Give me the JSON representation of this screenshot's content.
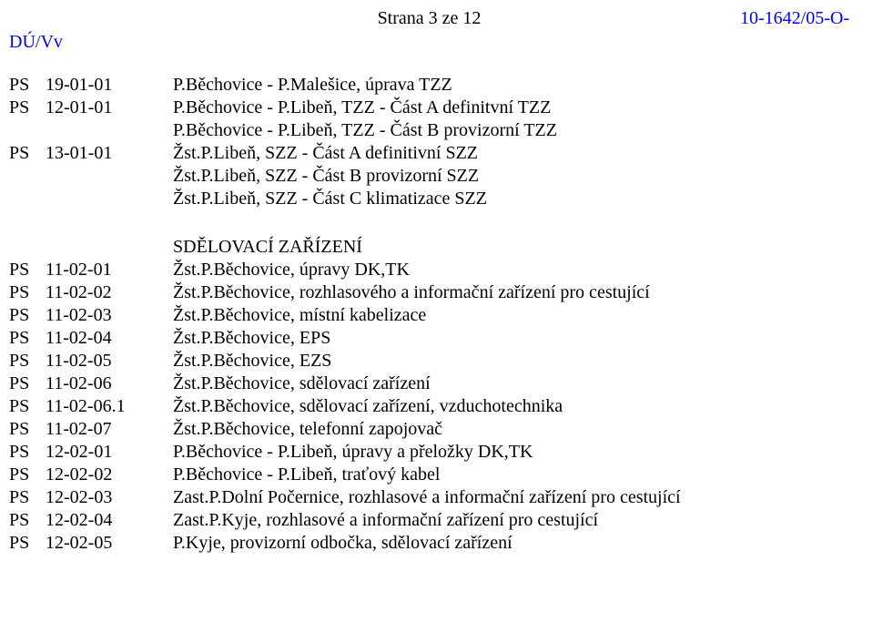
{
  "header": {
    "page_label": "Strana 3 ze 12",
    "ref_number": "10-1642/05-O-",
    "ref_left": "DÚ/Vv"
  },
  "colors": {
    "ref_color": "#0000ff",
    "text_color": "#000000",
    "background": "#ffffff"
  },
  "rows_top": [
    {
      "ps": "PS",
      "code": "19-01-01",
      "desc": "P.Běchovice - P.Malešice, úprava TZZ"
    },
    {
      "ps": "PS",
      "code": "12-01-01",
      "desc": "P.Běchovice - P.Libeň, TZZ - Část A definitvní TZZ"
    },
    {
      "ps": "",
      "code": "",
      "desc": "P.Běchovice - P.Libeň, TZZ - Část B provizorní TZZ"
    },
    {
      "ps": "PS",
      "code": "13-01-01",
      "desc": "Žst.P.Libeň, SZZ - Část A definitivní SZZ"
    },
    {
      "ps": "",
      "code": "",
      "desc": "Žst.P.Libeň, SZZ - Část B provizorní SZZ"
    },
    {
      "ps": "",
      "code": "",
      "desc": "Žst.P.Libeň, SZZ - Část C klimatizace SZZ"
    }
  ],
  "section_title": "SDĚLOVACÍ ZAŘÍZENÍ",
  "rows_bottom": [
    {
      "ps": "PS",
      "code": "11-02-01",
      "desc": "Žst.P.Běchovice, úpravy DK,TK"
    },
    {
      "ps": "PS",
      "code": "11-02-02",
      "desc": "Žst.P.Běchovice, rozhlasového a informační zařízení pro cestující"
    },
    {
      "ps": "PS",
      "code": "11-02-03",
      "desc": "Žst.P.Běchovice, místní kabelizace"
    },
    {
      "ps": "PS",
      "code": "11-02-04",
      "desc": "Žst.P.Běchovice, EPS"
    },
    {
      "ps": "PS",
      "code": "11-02-05",
      "desc": "Žst.P.Běchovice, EZS"
    },
    {
      "ps": "PS",
      "code": "11-02-06",
      "desc": "Žst.P.Běchovice, sdělovací zařízení"
    },
    {
      "ps": "PS",
      "code": "11-02-06.1",
      "desc": "Žst.P.Běchovice, sdělovací zařízení, vzduchotechnika"
    },
    {
      "ps": "PS",
      "code": "11-02-07",
      "desc": "Žst.P.Běchovice, telefonní zapojovač"
    },
    {
      "ps": "PS",
      "code": "12-02-01",
      "desc": "P.Běchovice - P.Libeň, úpravy a přeložky DK,TK"
    },
    {
      "ps": "PS",
      "code": "12-02-02",
      "desc": "P.Běchovice - P.Libeň, traťový kabel"
    },
    {
      "ps": "PS",
      "code": "12-02-03",
      "desc": "Zast.P.Dolní Počernice, rozhlasové a informační zařízení pro cestující"
    },
    {
      "ps": "PS",
      "code": "12-02-04",
      "desc": "Zast.P.Kyje, rozhlasové a informační zařízení pro cestující"
    },
    {
      "ps": "PS",
      "code": "12-02-05",
      "desc": "P.Kyje, provizorní odbočka, sdělovací zařízení"
    }
  ]
}
